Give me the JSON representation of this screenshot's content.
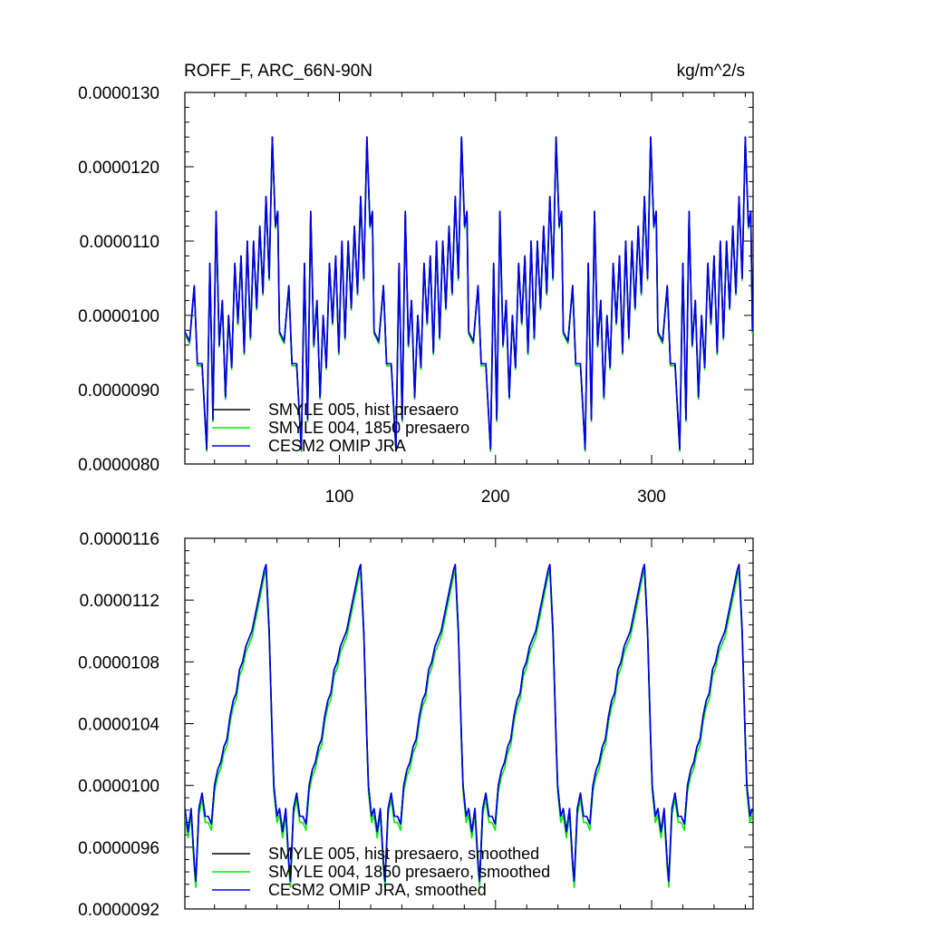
{
  "header": {
    "left_title": "ROFF_F, ARC_66N-90N",
    "right_title": "kg/m^2/s"
  },
  "colors": {
    "smyle005": "#000000",
    "smyle004": "#00ee00",
    "cesm2": "#0000ee"
  },
  "chart_data": [
    {
      "type": "line",
      "title": "ROFF_F, ARC_66N-90N",
      "units": "kg/m^2/s",
      "xlim": [
        1,
        365
      ],
      "ylim": [
        8e-06,
        1.3e-05
      ],
      "xticks": [
        100,
        200,
        300
      ],
      "xtick_labels": [
        "100",
        "200",
        "300"
      ],
      "yticks": [
        8e-06,
        9e-06,
        1e-05,
        1.1e-05,
        1.2e-05,
        1.3e-05
      ],
      "ytick_labels": [
        "0.0000080",
        "0.0000090",
        "0.0000100",
        "0.0000110",
        "0.0000120",
        "0.0000130"
      ],
      "period": 60.6,
      "cycle": [
        [
          0,
          9.78e-06
        ],
        [
          3,
          9.65e-06
        ],
        [
          6,
          1.04e-05
        ],
        [
          8,
          9.35e-06
        ],
        [
          11,
          9.35e-06
        ],
        [
          14,
          8.2e-06
        ],
        [
          16,
          1.07e-05
        ],
        [
          18,
          8.6e-06
        ],
        [
          20,
          1.14e-05
        ],
        [
          22,
          9.6e-06
        ],
        [
          24,
          1.02e-05
        ],
        [
          26,
          8.9e-06
        ],
        [
          28,
          1e-05
        ],
        [
          30,
          9.3e-06
        ],
        [
          32,
          1.07e-05
        ],
        [
          34,
          9.9e-06
        ],
        [
          36,
          1.08e-05
        ],
        [
          38,
          9.5e-06
        ],
        [
          40,
          1.1e-05
        ],
        [
          42,
          9.7e-06
        ],
        [
          44,
          1.1e-05
        ],
        [
          46,
          1.01e-05
        ],
        [
          48,
          1.12e-05
        ],
        [
          50,
          1.03e-05
        ],
        [
          52,
          1.16e-05
        ],
        [
          54,
          1.05e-05
        ],
        [
          56,
          1.24e-05
        ],
        [
          58,
          1.12e-05
        ],
        [
          59.5,
          1.14e-05
        ],
        [
          60.6,
          9.78e-06
        ]
      ],
      "series": [
        {
          "name": "SMYLE 005, hist presaero",
          "offset": 0.0
        },
        {
          "name": "SMYLE 004, 1850 presaero",
          "offset": -3e-08
        },
        {
          "name": "CESM2 OMIP JRA",
          "offset": 0.0
        }
      ],
      "legend": {
        "position": "bottom-left",
        "entries": [
          "SMYLE 005, hist presaero",
          "SMYLE 004, 1850 presaero",
          "CESM2 OMIP JRA"
        ]
      }
    },
    {
      "type": "line",
      "title": "",
      "xlim": [
        1,
        365
      ],
      "ylim": [
        9.2e-06,
        1.16e-05
      ],
      "xticks": [
        100,
        200,
        300
      ],
      "xtick_labels": [],
      "yticks": [
        9.2e-06,
        9.6e-06,
        1e-05,
        1.04e-05,
        1.08e-05,
        1.12e-05,
        1.16e-05
      ],
      "ytick_labels": [
        "0.0000092",
        "0.0000096",
        "0.0000100",
        "0.0000104",
        "0.0000108",
        "0.0000112",
        "0.0000116"
      ],
      "period": 60.6,
      "cycle": [
        [
          0,
          9.85e-06
        ],
        [
          2,
          9.7e-06
        ],
        [
          4,
          9.85e-06
        ],
        [
          6,
          9.5e-06
        ],
        [
          7,
          9.38e-06
        ],
        [
          9,
          9.85e-06
        ],
        [
          11,
          9.95e-06
        ],
        [
          13,
          9.8e-06
        ],
        [
          15,
          9.8e-06
        ],
        [
          17,
          9.75e-06
        ],
        [
          19,
          1e-05
        ],
        [
          21,
          1.01e-05
        ],
        [
          23,
          1.015e-05
        ],
        [
          25,
          1.025e-05
        ],
        [
          27,
          1.03e-05
        ],
        [
          29,
          1.045e-05
        ],
        [
          31,
          1.055e-05
        ],
        [
          33,
          1.06e-05
        ],
        [
          35,
          1.075e-05
        ],
        [
          37,
          1.08e-05
        ],
        [
          39,
          1.09e-05
        ],
        [
          41,
          1.095e-05
        ],
        [
          43,
          1.1e-05
        ],
        [
          45,
          1.11e-05
        ],
        [
          47,
          1.12e-05
        ],
        [
          49,
          1.13e-05
        ],
        [
          51,
          1.14e-05
        ],
        [
          52,
          1.143e-05
        ],
        [
          54,
          1.1e-05
        ],
        [
          56,
          1.03e-05
        ],
        [
          57,
          1e-05
        ],
        [
          59,
          9.8e-06
        ],
        [
          60.6,
          9.85e-06
        ]
      ],
      "series": [
        {
          "name": "SMYLE 005, hist presaero, smoothed",
          "offset": 0.0
        },
        {
          "name": "SMYLE 004, 1850 presaero, smoothed",
          "offset": -4e-08
        },
        {
          "name": "CESM2 OMIP JRA, smoothed",
          "offset": 0.0
        }
      ],
      "legend": {
        "position": "bottom-left",
        "entries": [
          "SMYLE 005, hist presaero, smoothed",
          "SMYLE 004, 1850 presaero, smoothed",
          "CESM2 OMIP JRA, smoothed"
        ]
      }
    }
  ]
}
